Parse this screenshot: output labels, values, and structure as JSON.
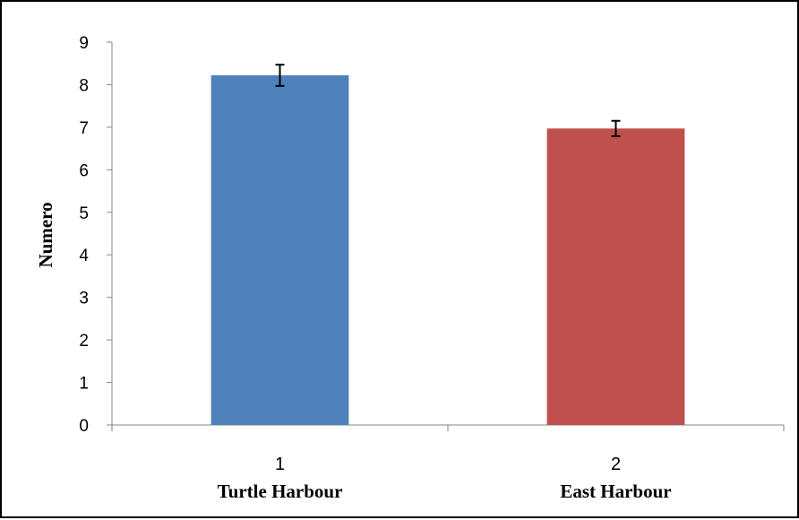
{
  "chart_data": {
    "type": "bar",
    "categories": [
      "1",
      "2"
    ],
    "category_names": [
      "Turtle Harbour",
      "East Harbour"
    ],
    "values": [
      8.22,
      6.97
    ],
    "errors": [
      0.25,
      0.18
    ],
    "colors": [
      "#4F81BD",
      "#C0504D"
    ],
    "ylabel": "Numero",
    "ylim": [
      0,
      9
    ],
    "yticks": [
      "0",
      "1",
      "2",
      "3",
      "4",
      "5",
      "6",
      "7",
      "8",
      "9"
    ],
    "grid": false,
    "legend": "none"
  }
}
